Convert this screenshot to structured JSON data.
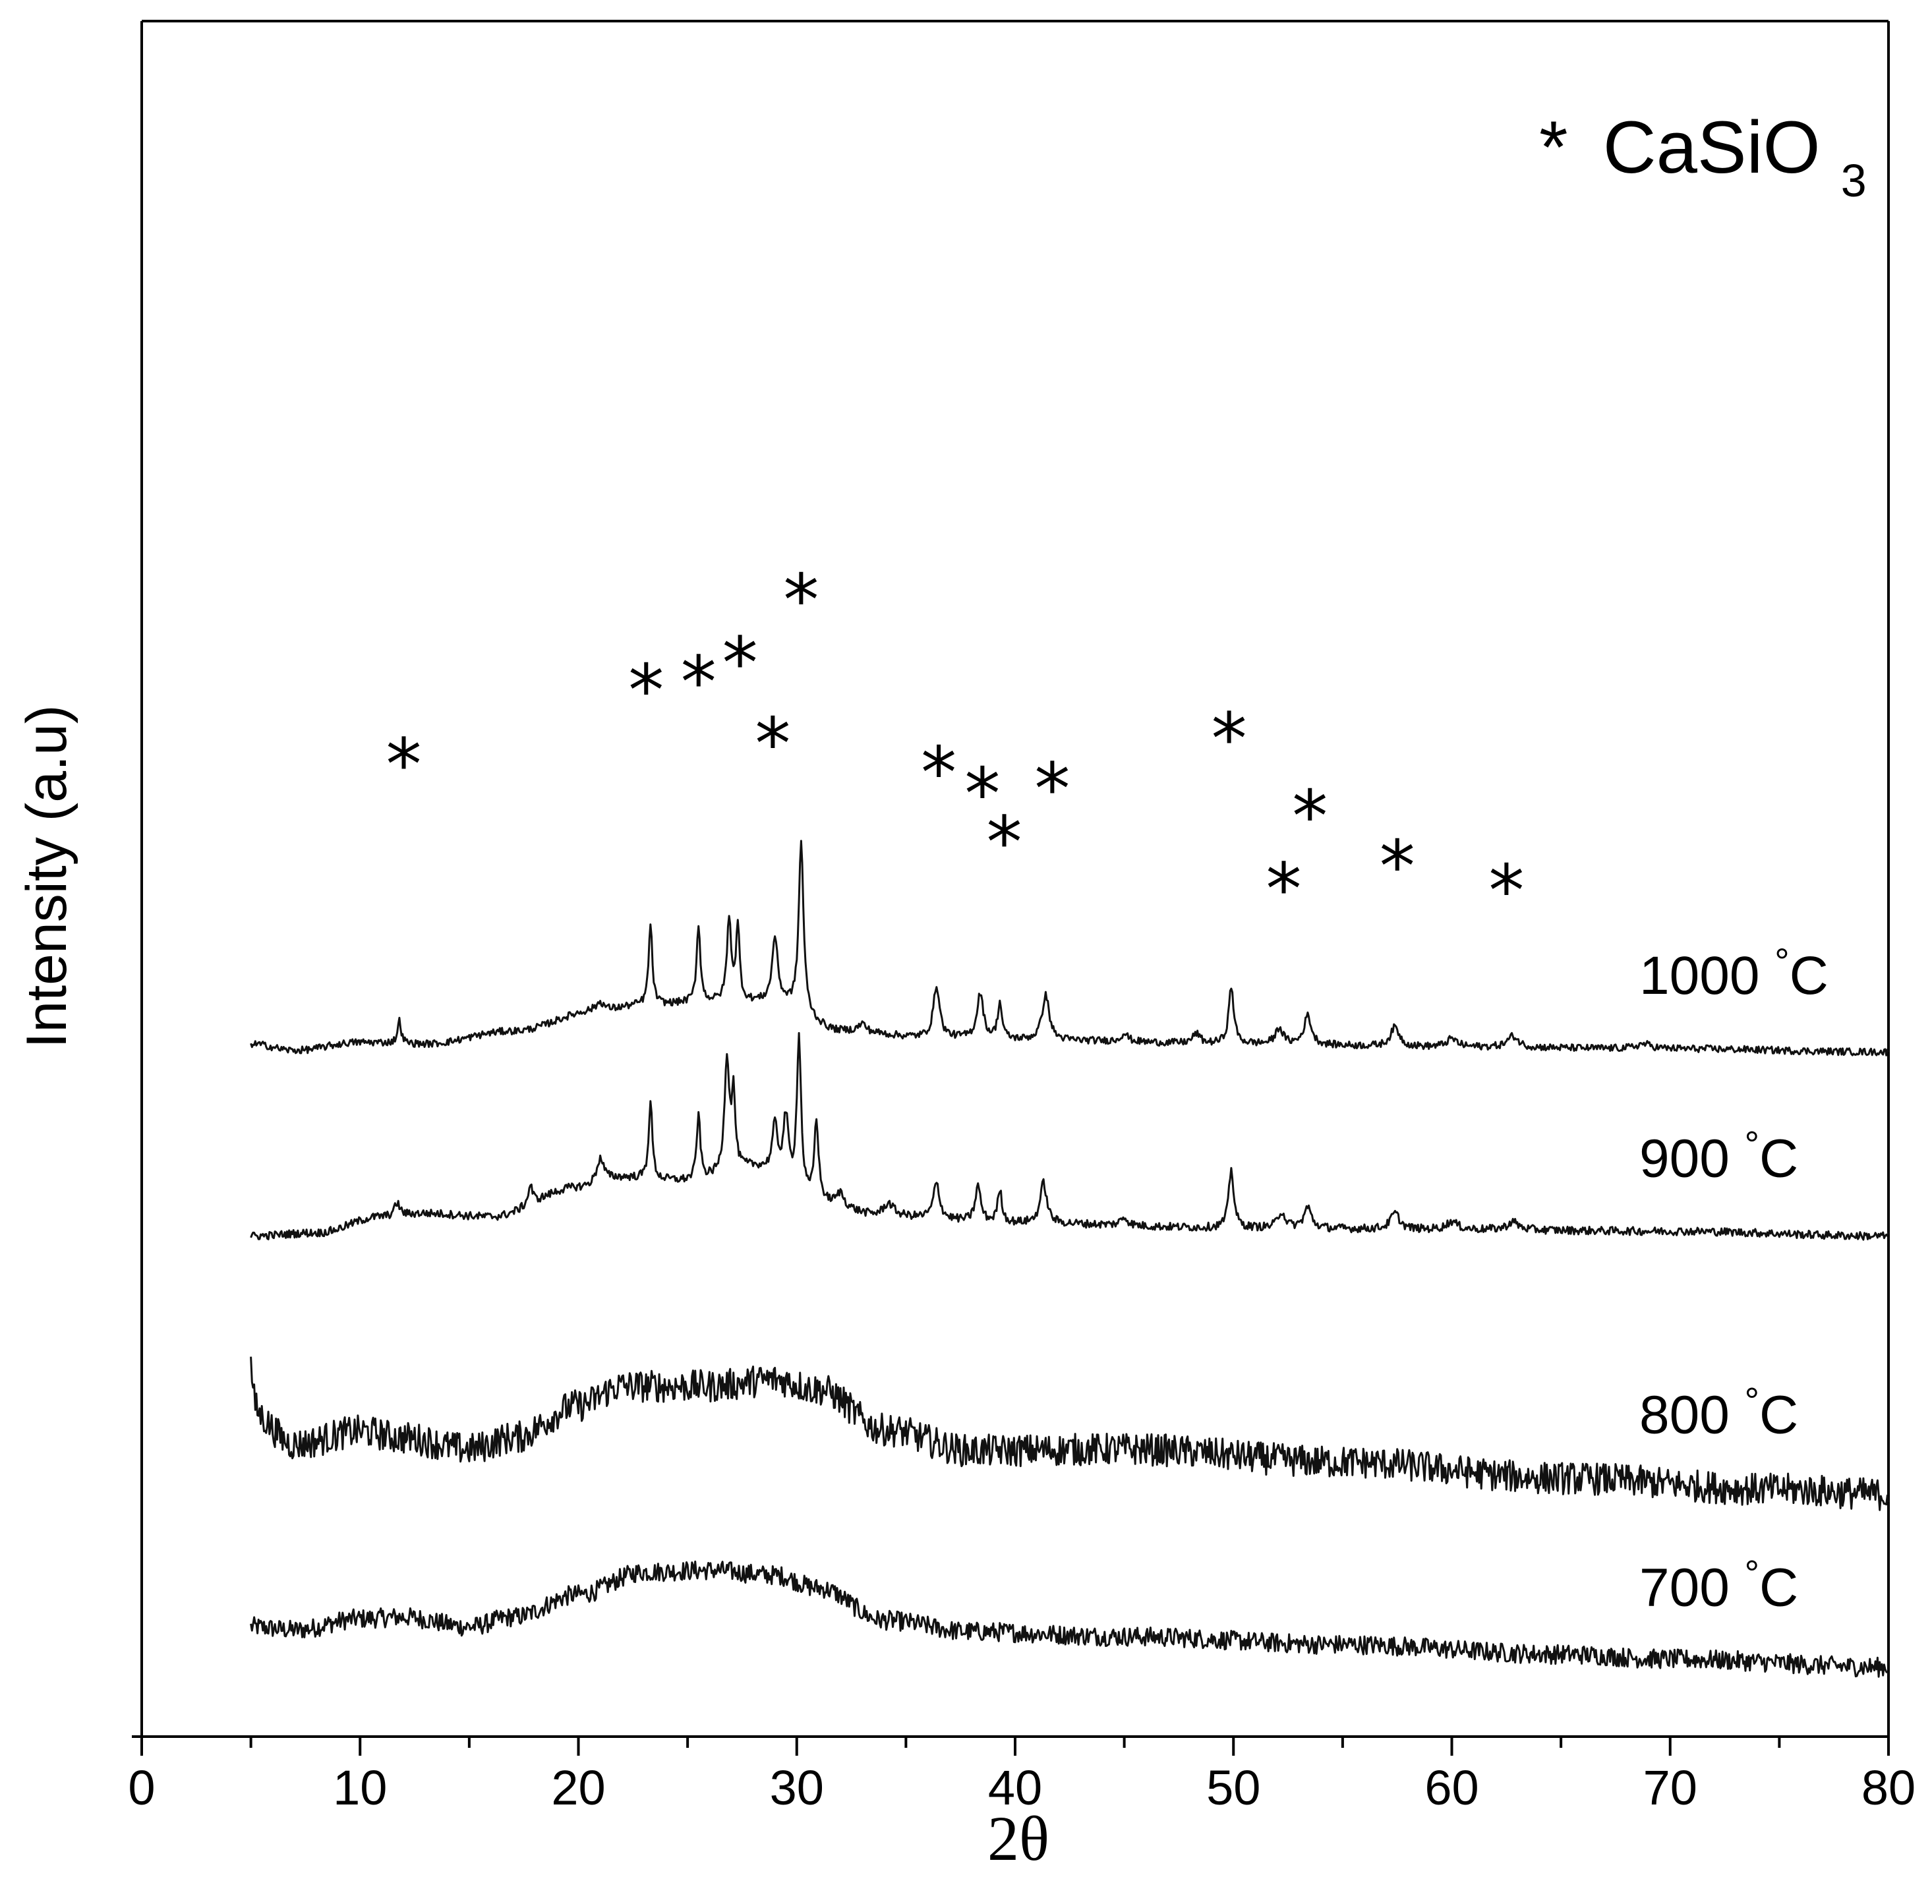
{
  "chart_data": {
    "type": "line",
    "title": "",
    "xlabel": "2θ",
    "ylabel": "Intensity (a.u)",
    "xlim": [
      0,
      80
    ],
    "xticks": [
      "0",
      "10",
      "20",
      "30",
      "40",
      "50",
      "60",
      "70",
      "80"
    ],
    "y_tick_labels": "none",
    "legend": {
      "symbol": "*",
      "text": "CaSiO",
      "subscript": "3",
      "placement": "top-right"
    },
    "series": [
      {
        "name": "700 °C",
        "label_value": "700",
        "label_unit": "°C",
        "offset": 40,
        "amplitude": 1.0,
        "baseline": [
          [
            5,
            28
          ],
          [
            7,
            26
          ],
          [
            10,
            33
          ],
          [
            12,
            34
          ],
          [
            15,
            28
          ],
          [
            17,
            34
          ],
          [
            20,
            48
          ],
          [
            23,
            62
          ],
          [
            26,
            63
          ],
          [
            29,
            60
          ],
          [
            31,
            52
          ],
          [
            34,
            32
          ],
          [
            38,
            25
          ],
          [
            45,
            22
          ],
          [
            55,
            17
          ],
          [
            65,
            11
          ],
          [
            70,
            8
          ],
          [
            80,
            3
          ]
        ],
        "peaks": [],
        "noise": 6
      },
      {
        "name": "800 °C",
        "label_value": "800",
        "label_unit": "°C",
        "offset": 145,
        "amplitude": 1.0,
        "baseline": [
          [
            5,
            55
          ],
          [
            7,
            36
          ],
          [
            10,
            44
          ],
          [
            12,
            40
          ],
          [
            15,
            33
          ],
          [
            17,
            40
          ],
          [
            20,
            60
          ],
          [
            22,
            72
          ],
          [
            26,
            72
          ],
          [
            29,
            76
          ],
          [
            31,
            70
          ],
          [
            34,
            45
          ],
          [
            38,
            32
          ],
          [
            45,
            33
          ],
          [
            55,
            25
          ],
          [
            65,
            15
          ],
          [
            75,
            8
          ],
          [
            80,
            5
          ]
        ],
        "peaks": [
          [
            5,
            30,
            0.1
          ]
        ],
        "noise": 10
      },
      {
        "name": "900 °C",
        "label_value": "900",
        "label_unit": "°C",
        "offset": 310,
        "amplitude": 1.0,
        "baseline": [
          [
            5,
            0
          ],
          [
            8,
            2
          ],
          [
            11,
            12
          ],
          [
            13,
            14
          ],
          [
            16,
            12
          ],
          [
            20,
            30
          ],
          [
            22,
            36
          ],
          [
            25,
            34
          ],
          [
            28,
            42
          ],
          [
            31,
            20
          ],
          [
            34,
            12
          ],
          [
            40,
            8
          ],
          [
            50,
            5
          ],
          [
            60,
            4
          ],
          [
            70,
            3
          ],
          [
            80,
            0
          ]
        ],
        "peaks": [
          [
            11.7,
            8,
            0.15
          ],
          [
            17.8,
            12,
            0.12
          ],
          [
            21,
            15,
            0.2
          ],
          [
            23.3,
            48,
            0.1
          ],
          [
            25.5,
            40,
            0.1
          ],
          [
            26.8,
            70,
            0.13
          ],
          [
            27.1,
            45,
            0.1
          ],
          [
            29,
            30,
            0.15
          ],
          [
            29.5,
            40,
            0.15
          ],
          [
            30.1,
            96,
            0.12
          ],
          [
            30.9,
            50,
            0.12
          ],
          [
            32,
            8,
            0.2
          ],
          [
            34.2,
            8,
            0.3
          ],
          [
            36.4,
            22,
            0.17
          ],
          [
            38.3,
            22,
            0.15
          ],
          [
            39.3,
            20,
            0.12
          ],
          [
            41.3,
            25,
            0.18
          ],
          [
            45,
            5,
            0.2
          ],
          [
            49.9,
            36,
            0.14
          ],
          [
            52.2,
            10,
            0.2
          ],
          [
            53.4,
            13,
            0.2
          ],
          [
            57.4,
            10,
            0.25
          ],
          [
            60,
            5,
            0.3
          ],
          [
            62.8,
            5,
            0.3
          ]
        ],
        "noise": 2.5
      },
      {
        "name": "1000 °C",
        "label_value": "1000",
        "label_unit": "°C",
        "offset": 425,
        "amplitude": 1.0,
        "baseline": [
          [
            5,
            4
          ],
          [
            7,
            0
          ],
          [
            10,
            5
          ],
          [
            13,
            4
          ],
          [
            17,
            12
          ],
          [
            21,
            25
          ],
          [
            23,
            28
          ],
          [
            26,
            30
          ],
          [
            29,
            30
          ],
          [
            32,
            12
          ],
          [
            36,
            8
          ],
          [
            42,
            6
          ],
          [
            50,
            4
          ],
          [
            60,
            2
          ],
          [
            70,
            1
          ],
          [
            80,
            -1
          ]
        ],
        "peaks": [
          [
            11.8,
            14,
            0.1
          ],
          [
            21,
            5,
            0.2
          ],
          [
            23.3,
            50,
            0.1
          ],
          [
            25.5,
            48,
            0.1
          ],
          [
            26.9,
            50,
            0.12
          ],
          [
            27.3,
            45,
            0.1
          ],
          [
            29,
            40,
            0.15
          ],
          [
            30.2,
            105,
            0.13
          ],
          [
            33,
            5,
            0.2
          ],
          [
            36.4,
            32,
            0.17
          ],
          [
            38.4,
            28,
            0.17
          ],
          [
            39.3,
            22,
            0.12
          ],
          [
            41.4,
            28,
            0.2
          ],
          [
            45,
            5,
            0.2
          ],
          [
            48.3,
            6,
            0.2
          ],
          [
            49.9,
            35,
            0.14
          ],
          [
            52.1,
            10,
            0.2
          ],
          [
            53.4,
            18,
            0.2
          ],
          [
            57.4,
            12,
            0.25
          ],
          [
            60,
            5,
            0.3
          ],
          [
            62.8,
            7,
            0.3
          ],
          [
            68.8,
            3,
            0.4
          ]
        ],
        "noise": 2.2
      }
    ],
    "annotations": [
      {
        "text": "*",
        "x": 12.0,
        "y": 603
      },
      {
        "text": "*",
        "x": 23.1,
        "y": 649
      },
      {
        "text": "*",
        "x": 25.5,
        "y": 654
      },
      {
        "text": "*",
        "x": 27.4,
        "y": 666
      },
      {
        "text": "*",
        "x": 28.9,
        "y": 616
      },
      {
        "text": "*",
        "x": 30.2,
        "y": 705
      },
      {
        "text": "*",
        "x": 36.5,
        "y": 598
      },
      {
        "text": "*",
        "x": 38.5,
        "y": 585
      },
      {
        "text": "*",
        "x": 39.5,
        "y": 555
      },
      {
        "text": "*",
        "x": 41.7,
        "y": 588
      },
      {
        "text": "*",
        "x": 49.8,
        "y": 619
      },
      {
        "text": "*",
        "x": 52.3,
        "y": 526
      },
      {
        "text": "*",
        "x": 53.5,
        "y": 571
      },
      {
        "text": "*",
        "x": 57.5,
        "y": 540
      },
      {
        "text": "*",
        "x": 62.5,
        "y": 525
      }
    ]
  }
}
